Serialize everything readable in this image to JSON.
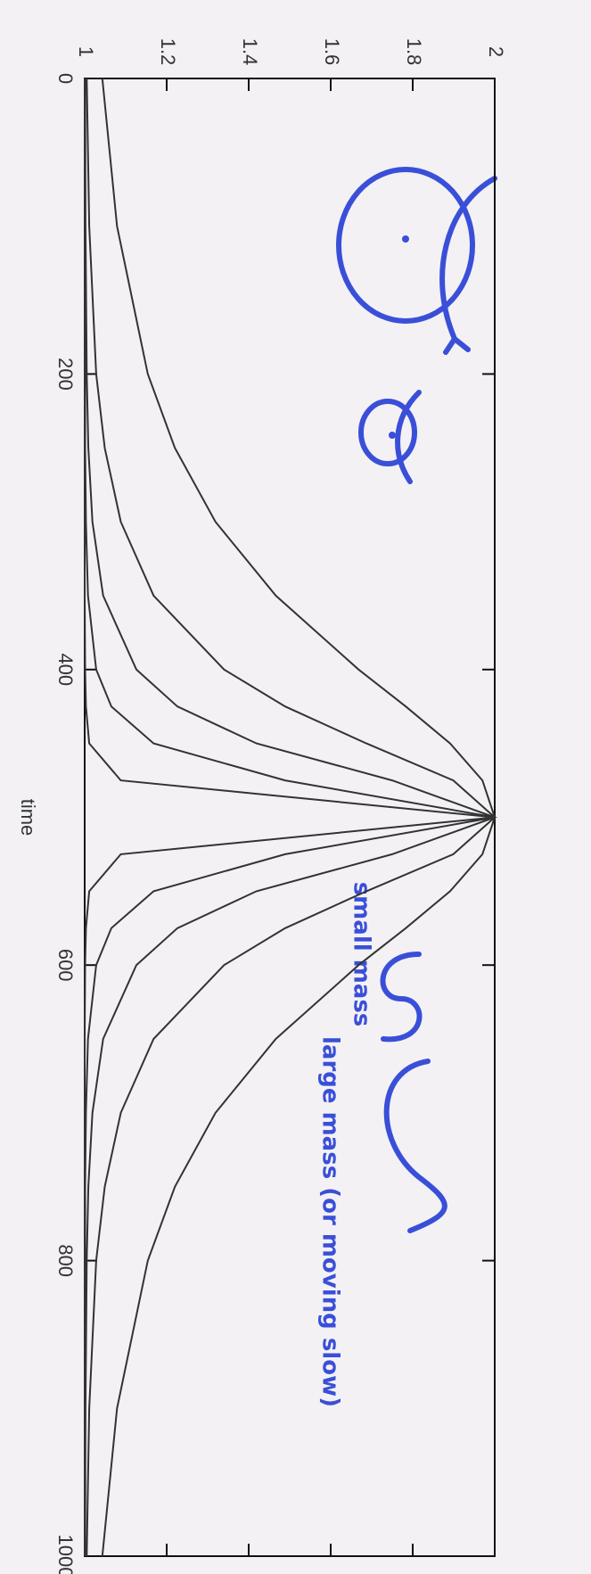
{
  "chart_data": {
    "type": "line",
    "xlabel": "time",
    "x": [
      0,
      100,
      200,
      250,
      300,
      350,
      400,
      425,
      450,
      475,
      500,
      525,
      550,
      575,
      600,
      650,
      700,
      750,
      800,
      900,
      1000
    ],
    "series": [
      {
        "color": "#333333",
        "values": [
          1.043,
          1.079,
          1.154,
          1.22,
          1.319,
          1.466,
          1.668,
          1.783,
          1.891,
          1.97,
          2,
          1.97,
          1.891,
          1.783,
          1.668,
          1.466,
          1.319,
          1.22,
          1.154,
          1.079,
          1.043
        ]
      },
      {
        "color": "#333333",
        "values": [
          1.005,
          1.011,
          1.028,
          1.049,
          1.088,
          1.168,
          1.34,
          1.489,
          1.687,
          1.899,
          2,
          1.899,
          1.687,
          1.489,
          1.34,
          1.168,
          1.088,
          1.049,
          1.028,
          1.011,
          1.005
        ]
      },
      {
        "color": "#333333",
        "values": [
          1.001,
          1.002,
          1.005,
          1.009,
          1.019,
          1.045,
          1.126,
          1.226,
          1.419,
          1.75,
          2,
          1.75,
          1.419,
          1.226,
          1.126,
          1.045,
          1.019,
          1.009,
          1.005,
          1.002,
          1.001
        ]
      },
      {
        "color": "#333333",
        "values": [
          1,
          1,
          1.001,
          1.001,
          1.003,
          1.008,
          1.028,
          1.065,
          1.168,
          1.489,
          2,
          1.489,
          1.168,
          1.065,
          1.028,
          1.008,
          1.003,
          1.001,
          1.001,
          1,
          1
        ]
      },
      {
        "color": "#333333",
        "values": [
          1,
          1,
          1,
          1,
          1,
          1,
          1.001,
          1.003,
          1.011,
          1.088,
          2,
          1.088,
          1.011,
          1.003,
          1.001,
          1,
          1,
          1,
          1,
          1,
          1
        ]
      }
    ],
    "xlim": [
      0,
      1000
    ],
    "xticks": [
      0,
      200,
      400,
      600,
      800,
      1000
    ],
    "ylim": [
      1,
      2
    ],
    "yticks": [
      1,
      1.2,
      1.4,
      1.6,
      1.8,
      2
    ],
    "annotations": [
      "small mass",
      "large mass (or moving slow)"
    ],
    "annotation_color": "#3a4fd8"
  }
}
